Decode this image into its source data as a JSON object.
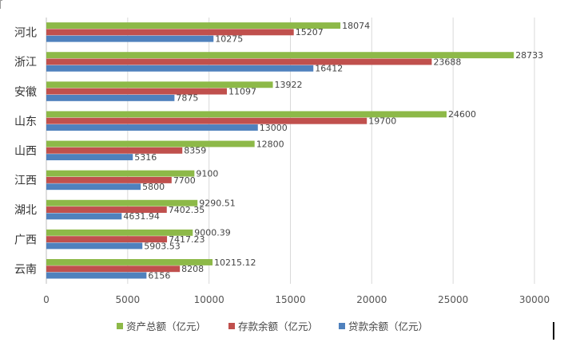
{
  "chart_data": {
    "type": "bar",
    "orientation": "horizontal",
    "categories": [
      "河北",
      "浙江",
      "安徽",
      "山东",
      "山西",
      "江西",
      "湖北",
      "广西",
      "云南"
    ],
    "category_labels": {
      "资产总额": [
        "18074",
        "28733",
        "13922",
        "24600",
        "12800",
        "9100",
        "9290.51",
        "9000.39",
        "10215.12"
      ],
      "存款余额": [
        "15207",
        "23688",
        "11097",
        "19700",
        "8359",
        "7700",
        "7402.35",
        "7417.23",
        "8208"
      ],
      "贷款余额": [
        "10275",
        "16412",
        "7875",
        "13000",
        "5316",
        "5800",
        "4631.94",
        "5903.53",
        "6156"
      ]
    },
    "series": [
      {
        "name": "资产总额（亿元）",
        "key": "资产总额",
        "color": "#8DB948",
        "values": [
          18074,
          28733,
          13922,
          24600,
          12800,
          9100,
          9290.51,
          9000.39,
          10215.12
        ]
      },
      {
        "name": "存款余额（亿元）",
        "key": "存款余额",
        "color": "#C0504D",
        "values": [
          15207,
          23688,
          11097,
          19700,
          8359,
          7700,
          7402.35,
          7417.23,
          8208
        ]
      },
      {
        "name": "贷款余额（亿元）",
        "key": "贷款余额",
        "color": "#4F81BD",
        "values": [
          10275,
          16412,
          7875,
          13000,
          5316,
          5800,
          4631.94,
          5903.53,
          6156
        ]
      }
    ],
    "xlim": [
      0,
      30000
    ],
    "xticks": [
      "0",
      "5000",
      "10000",
      "15000",
      "20000",
      "25000",
      "30000"
    ],
    "grid": "vertical",
    "legend_position": "bottom"
  }
}
